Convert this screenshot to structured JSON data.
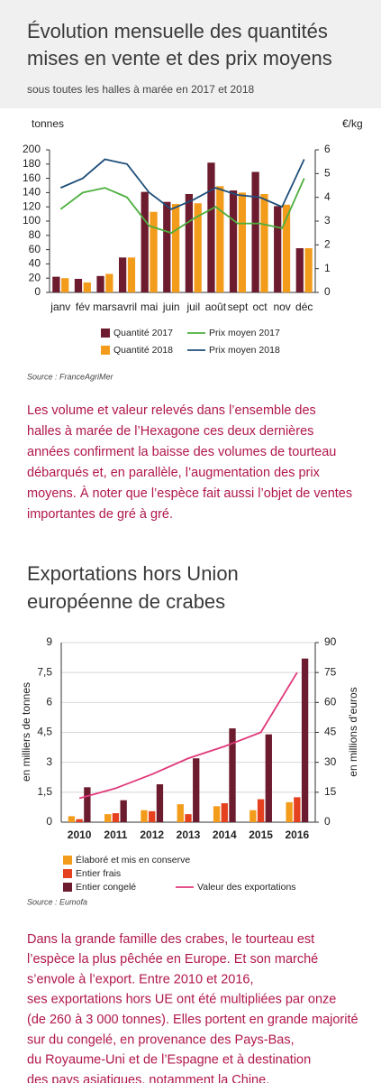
{
  "chart_data": [
    {
      "type": "bar",
      "title": [
        "Évolution mensuelle des quantités",
        "mises en vente et des prix moyens"
      ],
      "subtitle": "sous toutes les halles à marée en 2017 et 2018",
      "y_label": "tonnes",
      "y2_label": "€/kg",
      "source": "Source : FranceAgriMer",
      "categories": [
        "janv",
        "fév",
        "mars",
        "avril",
        "mai",
        "juin",
        "juil",
        "août",
        "sept",
        "oct",
        "nov",
        "déc"
      ],
      "series": [
        {
          "name": "Quantité 2017",
          "type": "bar",
          "color": "#6d1b2e",
          "values": [
            22,
            19,
            23,
            49,
            141,
            127,
            138,
            182,
            143,
            169,
            121,
            62
          ]
        },
        {
          "name": "Quantité 2018",
          "type": "bar",
          "color": "#f39c1b",
          "values": [
            20,
            14,
            26,
            49,
            113,
            124,
            125,
            149,
            140,
            138,
            123,
            62
          ]
        },
        {
          "name": "Prix moyen 2017",
          "type": "line",
          "axis": "y2",
          "color": "#4caf3c",
          "values": [
            3.5,
            4.2,
            4.4,
            4.0,
            2.8,
            2.5,
            3.1,
            3.6,
            2.9,
            2.9,
            2.7,
            4.8
          ]
        },
        {
          "name": "Prix moyen 2018",
          "type": "line",
          "axis": "y2",
          "color": "#1f4e79",
          "values": [
            4.4,
            4.8,
            5.6,
            5.4,
            4.2,
            3.5,
            3.9,
            4.4,
            4.1,
            4.0,
            3.6,
            5.6
          ]
        }
      ],
      "ylim": [
        0,
        200
      ],
      "yticks": [
        0,
        20,
        40,
        60,
        80,
        100,
        120,
        140,
        160,
        180,
        200
      ],
      "y2lim": [
        0,
        6
      ],
      "y2ticks": [
        0,
        1,
        2,
        3,
        4,
        5,
        6
      ],
      "grid": false
    },
    {
      "type": "bar",
      "title": [
        "Exportations hors Union",
        "européenne de crabes"
      ],
      "y_label": "en milliers de tonnes",
      "y2_label": "en millions d’euros",
      "source": "Source : Eumofa",
      "categories": [
        "2010",
        "2011",
        "2012",
        "2013",
        "2014",
        "2015",
        "2016"
      ],
      "series": [
        {
          "name": "Élaboré et mis en conserve",
          "type": "bar",
          "color": "#f39c1b",
          "values": [
            0.3,
            0.4,
            0.6,
            0.9,
            0.8,
            0.6,
            1.0
          ]
        },
        {
          "name": "Entier frais",
          "type": "bar",
          "color": "#e5411f",
          "values": [
            0.15,
            0.45,
            0.55,
            0.4,
            0.95,
            1.15,
            1.25
          ]
        },
        {
          "name": "Entier congelé",
          "type": "bar",
          "color": "#6d1b2e",
          "values": [
            1.75,
            1.1,
            1.9,
            3.2,
            4.7,
            4.4,
            8.2
          ]
        },
        {
          "name": "Valeur des exportations",
          "type": "line",
          "axis": "y2",
          "color": "#e0397a",
          "values": [
            12,
            17,
            24,
            32,
            38,
            45,
            75
          ]
        }
      ],
      "ylim": [
        0,
        9
      ],
      "yticks": [
        0,
        {
          "value": 1.5,
          "label": "1,5"
        },
        3,
        {
          "value": 4.5,
          "label": "4,5"
        },
        6,
        {
          "value": 7.5,
          "label": "7,5"
        },
        9
      ],
      "y2lim": [
        0,
        90
      ],
      "y2ticks": [
        0,
        15,
        30,
        45,
        60,
        75,
        90
      ],
      "grid": true
    }
  ],
  "paragraphs": [
    [
      "Les volume et valeur relevés dans l’ensemble des",
      "halles à marée de l’Hexagone ces deux dernières",
      "années confirment la baisse des volumes de tourteau",
      "débarqués et, en parallèle, l’augmentation des prix",
      "moyens. À noter que l’espèce fait aussi l’objet de ventes",
      "importantes de gré à gré."
    ],
    [
      "Dans la grande famille des crabes, le tourteau est",
      "l’espèce la plus pêchée en Europe. Et son marché",
      "s’envole à l’export. Entre 2010 et 2016,",
      "ses exportations hors UE ont été multipliées par onze",
      "(de 260 à 3 000 tonnes). Elles portent en grande majorité",
      "sur du congelé, en provenance des Pays-Bas,",
      "du Royaume-Uni et de l’Espagne et à destination",
      "des pays asiatiques, notamment la Chine."
    ]
  ]
}
